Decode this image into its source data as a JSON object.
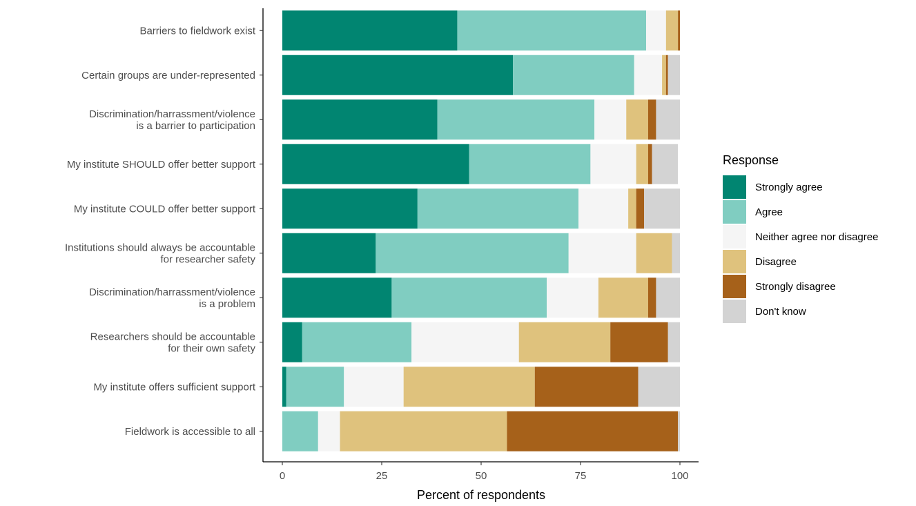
{
  "chart_data": {
    "type": "bar",
    "orientation": "horizontal",
    "stacked": true,
    "title": "",
    "xlabel": "Percent of respondents",
    "ylabel": "",
    "xlim": [
      0,
      100
    ],
    "x_ticks": [
      0,
      25,
      50,
      75,
      100
    ],
    "grid": false,
    "legend_position": "right",
    "legend_title": "Response",
    "categories": [
      "Barriers to fieldwork exist",
      "Certain groups are under-represented",
      "Discrimination/harrassment/violence\nis a barrier to participation",
      "My institute SHOULD offer better support",
      "My institute COULD offer better support",
      "Institutions should always be accountable\nfor researcher safety",
      "Discrimination/harrassment/violence\nis a problem",
      "Researchers should be accountable\nfor their own safety",
      "My institute offers sufficient support",
      "Fieldwork is accessible to all"
    ],
    "series": [
      {
        "name": "Strongly agree",
        "color": "#018571",
        "values": [
          44,
          58,
          39,
          47,
          34,
          23.5,
          27.5,
          5,
          1,
          0
        ]
      },
      {
        "name": "Agree",
        "color": "#80cdc1",
        "values": [
          47.5,
          30.5,
          39.5,
          30.5,
          40.5,
          48.5,
          39,
          27.5,
          14.5,
          9
        ]
      },
      {
        "name": "Neither agree nor disagree",
        "color": "#f5f5f5",
        "values": [
          5,
          7,
          8,
          11.5,
          12.5,
          17,
          13,
          27,
          15,
          5.5
        ]
      },
      {
        "name": "Disagree",
        "color": "#dfc27d",
        "values": [
          3,
          1,
          5.5,
          3,
          2,
          9,
          12.5,
          23,
          33,
          42
        ]
      },
      {
        "name": "Strongly disagree",
        "color": "#a6611a",
        "values": [
          0.5,
          0.5,
          2,
          1,
          2,
          0,
          2,
          14.5,
          26,
          43
        ]
      },
      {
        "name": "Don't know",
        "color": "#d3d3d3",
        "values": [
          0,
          3,
          6,
          6.5,
          9,
          2,
          6,
          3,
          10.5,
          0.5
        ]
      }
    ]
  }
}
